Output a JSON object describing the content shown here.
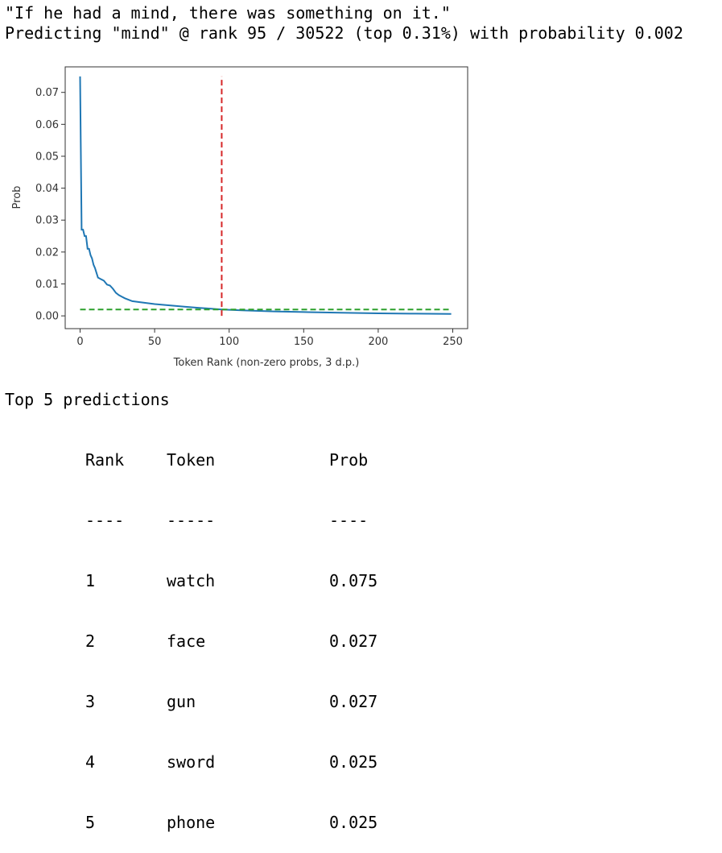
{
  "output": {
    "sentence": "\"If he had a mind, there was something on it.\"",
    "prediction_line": "Predicting \"mind\" @ rank 95 / 30522 (top 0.31%) with probability 0.002"
  },
  "chart_data": {
    "type": "line",
    "xlabel": "Token Rank (non-zero probs, 3 d.p.)",
    "ylabel": "Prob",
    "xlim": [
      -10,
      260
    ],
    "ylim": [
      -0.004,
      0.078
    ],
    "xticks": [
      0,
      50,
      100,
      150,
      200,
      250
    ],
    "yticks": [
      0.0,
      0.01,
      0.02,
      0.03,
      0.04,
      0.05,
      0.06,
      0.07
    ],
    "xtick_labels": [
      "0",
      "50",
      "100",
      "150",
      "200",
      "250"
    ],
    "ytick_labels": [
      "0.00",
      "0.01",
      "0.02",
      "0.03",
      "0.04",
      "0.05",
      "0.06",
      "0.07"
    ],
    "grid": false,
    "series": [
      {
        "color": "#1f77b4",
        "x": [
          0,
          1,
          2,
          3,
          4,
          5,
          6,
          7,
          8,
          9,
          10,
          12,
          14,
          16,
          18,
          20,
          22,
          24,
          26,
          28,
          30,
          35,
          40,
          50,
          60,
          70,
          80,
          95,
          110,
          130,
          150,
          175,
          200,
          225,
          249
        ],
        "y": [
          0.075,
          0.027,
          0.027,
          0.025,
          0.025,
          0.021,
          0.021,
          0.019,
          0.018,
          0.016,
          0.015,
          0.012,
          0.0115,
          0.011,
          0.0098,
          0.0095,
          0.0085,
          0.0072,
          0.0065,
          0.006,
          0.0055,
          0.0046,
          0.0043,
          0.0037,
          0.0033,
          0.0029,
          0.0025,
          0.002,
          0.0017,
          0.0014,
          0.0012,
          0.001,
          0.0008,
          0.0007,
          0.0006
        ]
      }
    ],
    "reference_lines": [
      {
        "orientation": "vertical",
        "value": 95,
        "y_range": [
          0,
          0.075
        ],
        "color": "#d62728",
        "style": "dashed"
      },
      {
        "orientation": "horizontal",
        "value": 0.002,
        "x_range": [
          0,
          249
        ],
        "color": "#2ca02c",
        "style": "dashed"
      }
    ]
  },
  "top": {
    "title": "Top 5 predictions",
    "headers": [
      "Rank",
      "Token",
      "Prob"
    ],
    "separators": [
      "----",
      "-----",
      "----"
    ],
    "rows": [
      {
        "rank": "1",
        "token": "watch",
        "prob": "0.075"
      },
      {
        "rank": "2",
        "token": "face",
        "prob": "0.027"
      },
      {
        "rank": "3",
        "token": "gun",
        "prob": "0.027"
      },
      {
        "rank": "4",
        "token": "sword",
        "prob": "0.025"
      },
      {
        "rank": "5",
        "token": "phone",
        "prob": "0.025"
      }
    ]
  }
}
